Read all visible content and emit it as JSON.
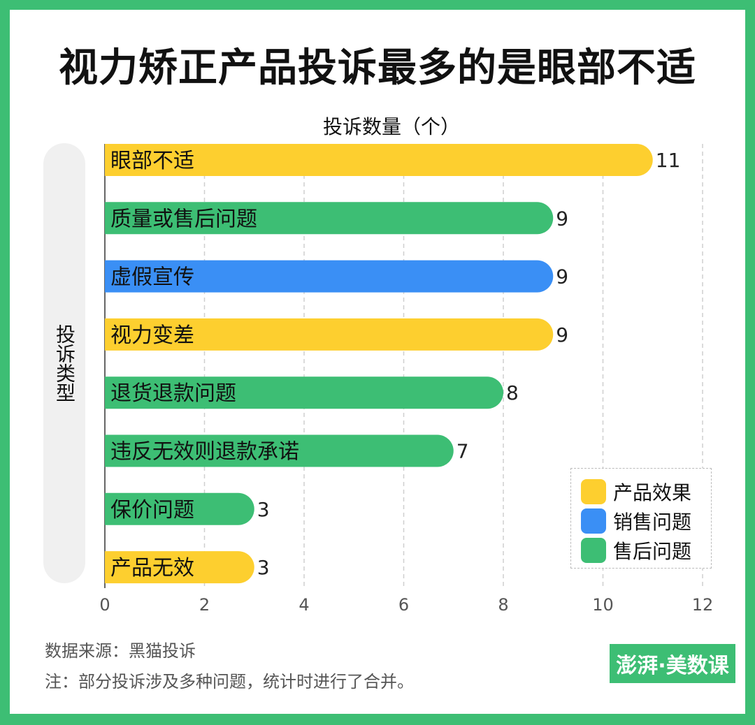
{
  "title": "视力矫正产品投诉最多的是眼部不适",
  "source": "数据来源：黑猫投诉",
  "note": "注：部分投诉涉及多种问题，统计时进行了合并。",
  "logo": "澎湃·美数课",
  "colors": {
    "frame": "#3dbe74",
    "产品效果": "#fdcf2f",
    "销售问题": "#3a8ff5",
    "售后问题": "#3dbe74"
  },
  "legend": [
    {
      "label": "产品效果",
      "color": "#fdcf2f"
    },
    {
      "label": "销售问题",
      "color": "#3a8ff5"
    },
    {
      "label": "售后问题",
      "color": "#3dbe74"
    }
  ],
  "chart_data": {
    "type": "bar",
    "orientation": "horizontal",
    "xlabel": "投诉数量（个）",
    "ylabel": "投诉类型",
    "xlim": [
      0,
      12
    ],
    "xticks": [
      0,
      2,
      4,
      6,
      8,
      10,
      12
    ],
    "grid": true,
    "legend_position": "bottom-right",
    "categories": [
      "眼部不适",
      "质量或售后问题",
      "虚假宣传",
      "视力变差",
      "退货退款问题",
      "违反无效则退款承诺",
      "保价问题",
      "产品无效"
    ],
    "values": [
      11,
      9,
      9,
      9,
      8,
      7,
      3,
      3
    ],
    "groups": [
      "产品效果",
      "售后问题",
      "销售问题",
      "产品效果",
      "售后问题",
      "售后问题",
      "售后问题",
      "产品效果"
    ]
  }
}
